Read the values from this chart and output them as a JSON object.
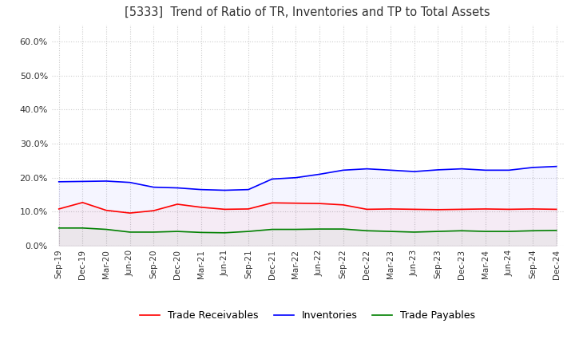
{
  "title": "[5333]  Trend of Ratio of TR, Inventories and TP to Total Assets",
  "x_labels": [
    "Sep-19",
    "Dec-19",
    "Mar-20",
    "Jun-20",
    "Sep-20",
    "Dec-20",
    "Mar-21",
    "Jun-21",
    "Sep-21",
    "Dec-21",
    "Mar-22",
    "Jun-22",
    "Sep-22",
    "Dec-22",
    "Mar-23",
    "Jun-23",
    "Sep-23",
    "Dec-23",
    "Mar-24",
    "Jun-24",
    "Sep-24",
    "Dec-24"
  ],
  "trade_receivables": [
    0.108,
    0.127,
    0.104,
    0.096,
    0.103,
    0.122,
    0.113,
    0.107,
    0.108,
    0.126,
    0.125,
    0.124,
    0.12,
    0.107,
    0.108,
    0.107,
    0.106,
    0.107,
    0.108,
    0.107,
    0.108,
    0.107
  ],
  "inventories": [
    0.188,
    0.189,
    0.19,
    0.186,
    0.172,
    0.17,
    0.165,
    0.163,
    0.165,
    0.196,
    0.2,
    0.21,
    0.222,
    0.226,
    0.222,
    0.218,
    0.223,
    0.226,
    0.222,
    0.222,
    0.23,
    0.233
  ],
  "trade_payables": [
    0.052,
    0.052,
    0.048,
    0.04,
    0.04,
    0.042,
    0.039,
    0.038,
    0.042,
    0.048,
    0.048,
    0.049,
    0.049,
    0.044,
    0.042,
    0.04,
    0.042,
    0.044,
    0.042,
    0.042,
    0.044,
    0.045
  ],
  "ylim": [
    0.0,
    0.65
  ],
  "yticks": [
    0.0,
    0.1,
    0.2,
    0.3,
    0.4,
    0.5,
    0.6
  ],
  "tr_color": "#ff0000",
  "inv_color": "#0000ff",
  "tp_color": "#008000",
  "tr_label": "Trade Receivables",
  "inv_label": "Inventories",
  "tp_label": "Trade Payables",
  "background_color": "#ffffff",
  "grid_color": "#cccccc"
}
